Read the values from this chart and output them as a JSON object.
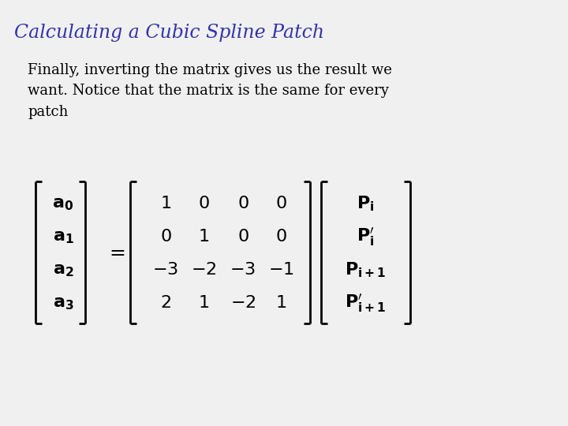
{
  "title": "Calculating a Cubic Spline Patch",
  "title_color": "#3333aa",
  "title_fontsize": 17,
  "body_text": "Finally, inverting the matrix gives us the result we\nwant. Notice that the matrix is the same for every\npatch",
  "body_fontsize": 13,
  "background_color": "#f0f0f0",
  "lhs_labels": [
    "a_0",
    "a_1",
    "a_2",
    "a_3"
  ],
  "matrix": [
    [
      "1",
      "0",
      "0",
      "0"
    ],
    [
      "0",
      "1",
      "0",
      "0"
    ],
    [
      "-3",
      "-2",
      "-3",
      "-1"
    ],
    [
      "2",
      "1",
      "-2",
      "1"
    ]
  ],
  "rhs_labels_bold": [
    "\\mathbf{P_i}",
    "\\mathbf{P_i^{\\prime}}",
    "\\mathbf{P_{i+1}}",
    "\\mathbf{P_{i+1}^{\\prime}}"
  ],
  "eq_fontsize": 16,
  "bracket_lw": 2.0
}
